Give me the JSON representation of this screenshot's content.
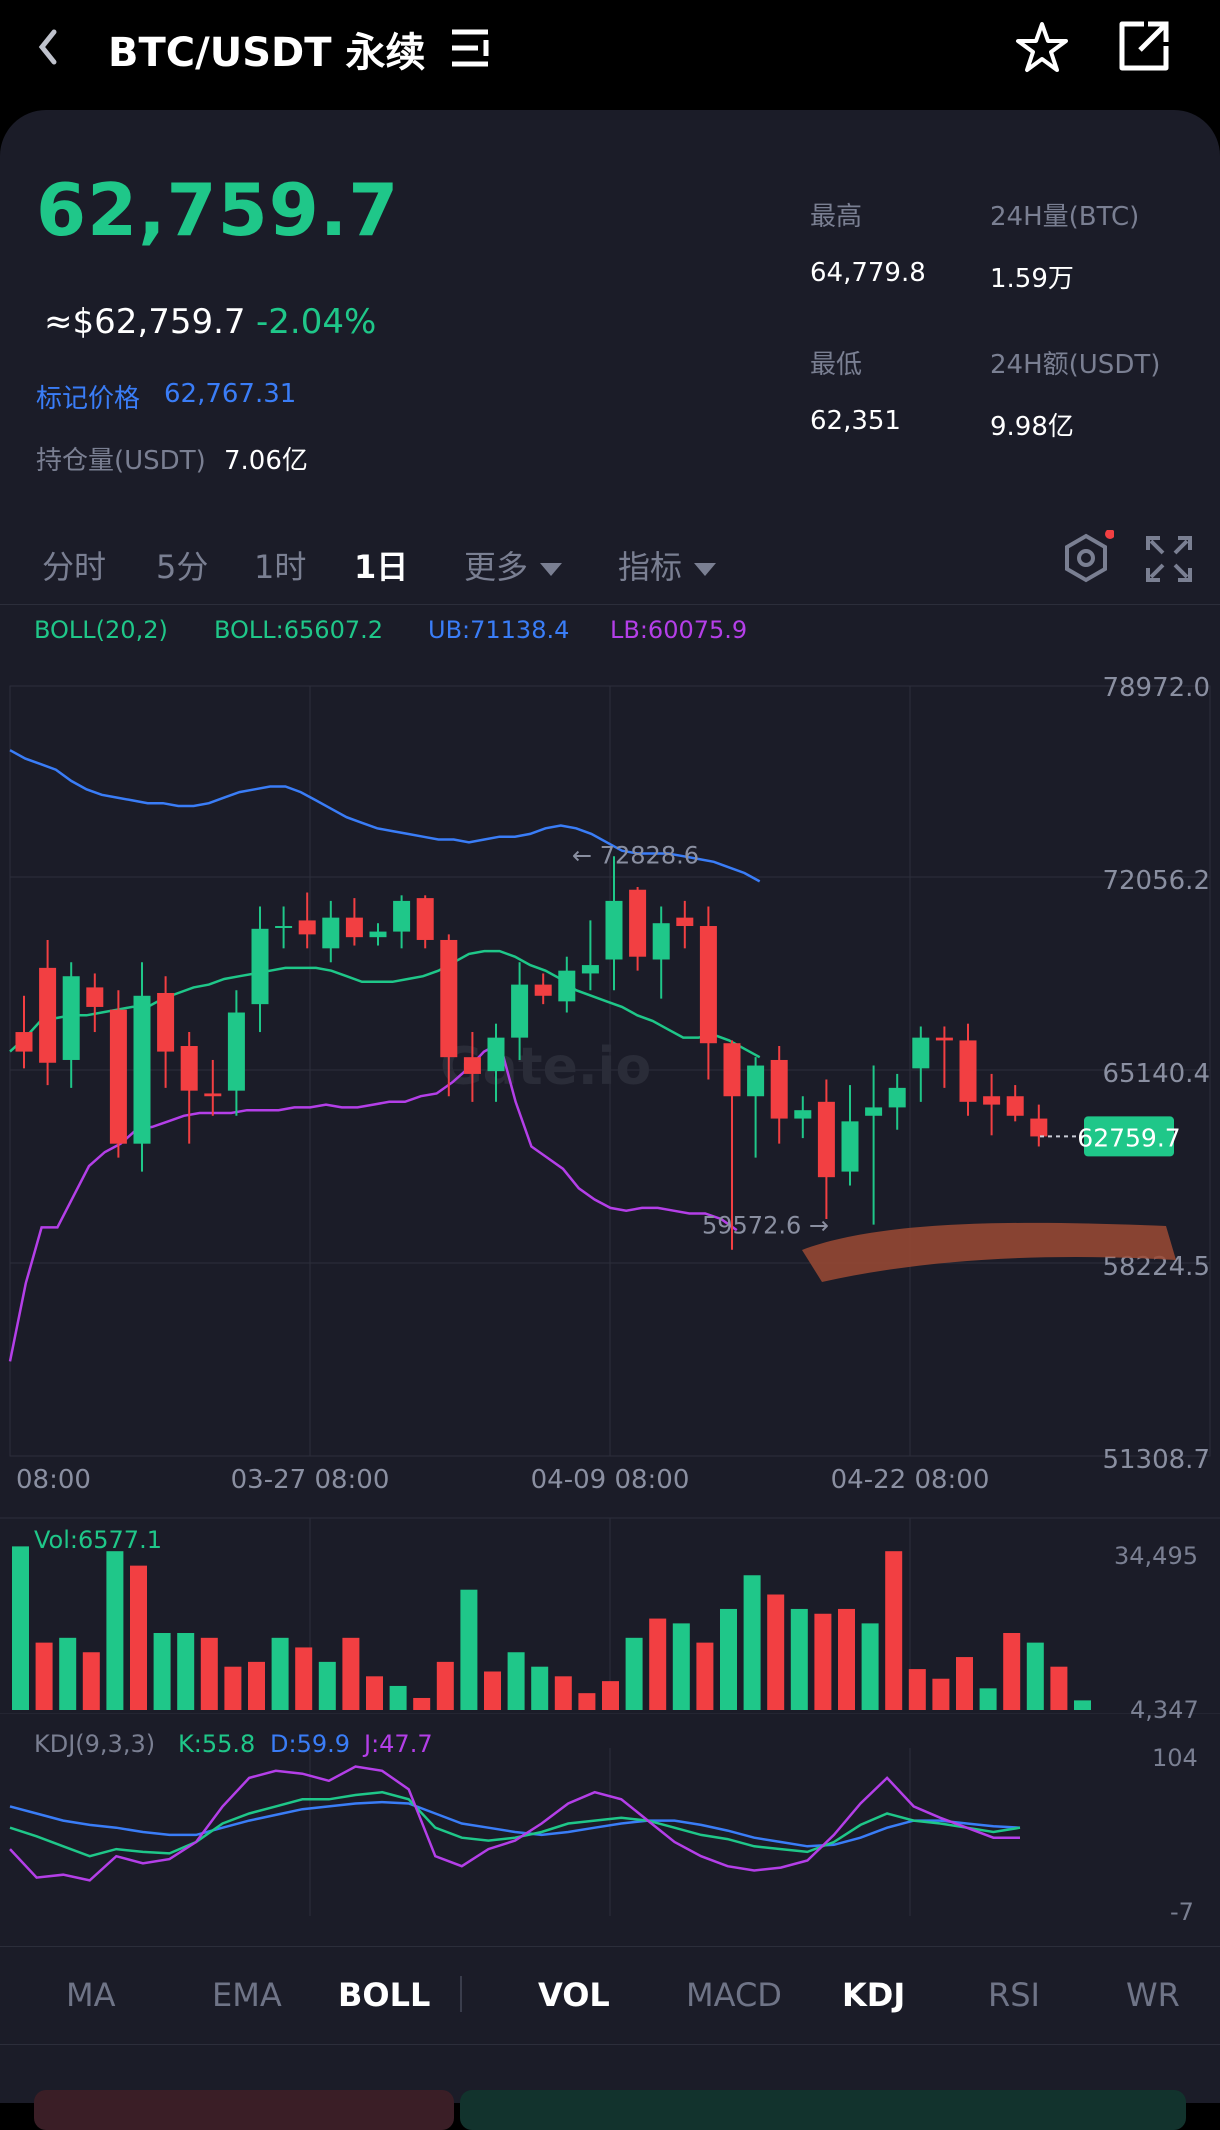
{
  "header": {
    "title": "BTC/USDT 永续",
    "back_icon": "chevron-left-icon",
    "menu_icon": "menu-lines-icon",
    "star_icon": "star-outline-icon",
    "share_icon": "external-link-icon"
  },
  "ticker": {
    "last_price": "62,759.7",
    "usd_price": "≈$62,759.7",
    "change_pct": "-2.04%",
    "mark_label": "标记价格",
    "mark_value": "62,767.31",
    "oi_label": "持仓量(USDT)",
    "oi_value": "7.06亿",
    "high_label": "最高",
    "high_value": "64,779.8",
    "vol_label": "24H量(BTC)",
    "vol_value": "1.59万",
    "low_label": "最低",
    "low_value": "62,351",
    "amount_label": "24H额(USDT)",
    "amount_value": "9.98亿"
  },
  "interval_tabs": {
    "t1": "分时",
    "t2": "5分",
    "t3": "1时",
    "t4": "1日",
    "more": "更多",
    "indicator": "指标",
    "active": "1日"
  },
  "boll_legend": {
    "name": "BOLL(20,2)",
    "mid": "BOLL:65607.2",
    "ub": "UB:71138.4",
    "lb": "LB:60075.9"
  },
  "main_axis": {
    "y_labels": [
      "78972.0",
      "72056.2",
      "65140.4",
      "58224.5",
      "51308.7"
    ],
    "x_labels": [
      "08:00",
      "03-27 08:00",
      "04-09 08:00",
      "04-22 08:00"
    ],
    "current_price_tag": "62759.7",
    "max_annotation": "← 72828.6",
    "min_annotation": "59572.6 →",
    "watermark": "Gate.io"
  },
  "volume": {
    "label": "Vol:6577.1",
    "top": "34,495",
    "bottom": "4,347"
  },
  "kdj": {
    "name": "KDJ(9,3,3)",
    "k": "K:55.8",
    "d": "D:59.9",
    "j": "J:47.7",
    "top": "104",
    "bottom": "-7"
  },
  "bottom_tabs": [
    "MA",
    "EMA",
    "BOLL",
    "VOL",
    "MACD",
    "KDJ",
    "RSI",
    "WR"
  ],
  "colors": {
    "up": "#1fc789",
    "down": "#f23f42",
    "ub": "#3a7df7",
    "mid": "#1fc789",
    "lb": "#b43fe8",
    "bg": "#1b1c28"
  },
  "chart_data": {
    "type": "candlestick",
    "y_range": [
      51308.7,
      78972.0
    ],
    "candles": [
      {
        "o": 66500,
        "h": 67800,
        "l": 65200,
        "c": 65800
      },
      {
        "o": 68800,
        "h": 69800,
        "l": 64600,
        "c": 65400
      },
      {
        "o": 65500,
        "h": 69000,
        "l": 64500,
        "c": 68500
      },
      {
        "o": 68100,
        "h": 68600,
        "l": 66500,
        "c": 67400
      },
      {
        "o": 67300,
        "h": 68000,
        "l": 62000,
        "c": 62500
      },
      {
        "o": 62500,
        "h": 69000,
        "l": 61500,
        "c": 67800
      },
      {
        "o": 67900,
        "h": 68500,
        "l": 64500,
        "c": 65800
      },
      {
        "o": 66000,
        "h": 66500,
        "l": 62500,
        "c": 64400
      },
      {
        "o": 64300,
        "h": 65500,
        "l": 63500,
        "c": 64200
      },
      {
        "o": 64400,
        "h": 68000,
        "l": 63500,
        "c": 67200
      },
      {
        "o": 67500,
        "h": 71000,
        "l": 66500,
        "c": 70200
      },
      {
        "o": 70300,
        "h": 71000,
        "l": 69500,
        "c": 70300
      },
      {
        "o": 70500,
        "h": 71500,
        "l": 69500,
        "c": 70000
      },
      {
        "o": 69500,
        "h": 71200,
        "l": 69000,
        "c": 70600
      },
      {
        "o": 70600,
        "h": 71300,
        "l": 69600,
        "c": 69900
      },
      {
        "o": 69900,
        "h": 70400,
        "l": 69600,
        "c": 70100
      },
      {
        "o": 70100,
        "h": 71400,
        "l": 69500,
        "c": 71200
      },
      {
        "o": 71300,
        "h": 71400,
        "l": 69500,
        "c": 69800
      },
      {
        "o": 69800,
        "h": 70000,
        "l": 64200,
        "c": 65600
      },
      {
        "o": 65600,
        "h": 66500,
        "l": 64000,
        "c": 65000
      },
      {
        "o": 65100,
        "h": 66800,
        "l": 64000,
        "c": 66300
      },
      {
        "o": 66300,
        "h": 69000,
        "l": 65500,
        "c": 68200
      },
      {
        "o": 68200,
        "h": 68600,
        "l": 67500,
        "c": 67800
      },
      {
        "o": 67600,
        "h": 69200,
        "l": 67200,
        "c": 68700
      },
      {
        "o": 68600,
        "h": 70500,
        "l": 68000,
        "c": 68900
      },
      {
        "o": 69100,
        "h": 72800,
        "l": 68000,
        "c": 71200
      },
      {
        "o": 71600,
        "h": 71700,
        "l": 68700,
        "c": 69200
      },
      {
        "o": 69100,
        "h": 71000,
        "l": 67700,
        "c": 70400
      },
      {
        "o": 70600,
        "h": 71200,
        "l": 69500,
        "c": 70300
      },
      {
        "o": 70300,
        "h": 71000,
        "l": 64800,
        "c": 66100
      },
      {
        "o": 66100,
        "h": 66200,
        "l": 58700,
        "c": 64200
      },
      {
        "o": 64200,
        "h": 65600,
        "l": 62000,
        "c": 65300
      },
      {
        "o": 65500,
        "h": 66000,
        "l": 62500,
        "c": 63400
      },
      {
        "o": 63400,
        "h": 64200,
        "l": 62700,
        "c": 63700
      },
      {
        "o": 64000,
        "h": 64800,
        "l": 59800,
        "c": 61300
      },
      {
        "o": 61500,
        "h": 64600,
        "l": 61000,
        "c": 63300
      },
      {
        "o": 63500,
        "h": 65300,
        "l": 59600,
        "c": 63800
      },
      {
        "o": 63800,
        "h": 65000,
        "l": 63000,
        "c": 64500
      },
      {
        "o": 65200,
        "h": 66700,
        "l": 64000,
        "c": 66300
      },
      {
        "o": 66300,
        "h": 66700,
        "l": 64500,
        "c": 66200
      },
      {
        "o": 66200,
        "h": 66800,
        "l": 63500,
        "c": 64000
      },
      {
        "o": 64200,
        "h": 65000,
        "l": 62800,
        "c": 63900
      },
      {
        "o": 64200,
        "h": 64600,
        "l": 63300,
        "c": 63500
      },
      {
        "o": 63400,
        "h": 63900,
        "l": 62400,
        "c": 62760
      }
    ],
    "ub": [
      76600,
      76300,
      76100,
      75900,
      75500,
      75200,
      75000,
      74900,
      74800,
      74700,
      74700,
      74600,
      74600,
      74700,
      74900,
      75100,
      75200,
      75300,
      75300,
      75100,
      74800,
      74500,
      74200,
      74000,
      73800,
      73700,
      73600,
      73500,
      73400,
      73400,
      73300,
      73400,
      73500,
      73500,
      73600,
      73800,
      73900,
      73800,
      73600,
      73300,
      73000,
      72900,
      72900,
      72900,
      72800,
      72700,
      72600,
      72400,
      72200,
      71900
    ],
    "mid": [
      65800,
      66300,
      66900,
      67000,
      67100,
      67100,
      67200,
      67300,
      67400,
      67400,
      67700,
      67900,
      68100,
      68200,
      68400,
      68500,
      68600,
      68700,
      68800,
      68800,
      68800,
      68700,
      68500,
      68300,
      68300,
      68300,
      68400,
      68500,
      68700,
      69000,
      69300,
      69400,
      69400,
      69200,
      68900,
      68700,
      68400,
      68000,
      67800,
      67600,
      67400,
      67100,
      66900,
      66600,
      66300,
      66300,
      66400,
      66200,
      65900,
      65600
    ],
    "lb": [
      54700,
      57500,
      59500,
      59500,
      60600,
      61700,
      62200,
      62500,
      63000,
      63100,
      63300,
      63500,
      63600,
      63600,
      63600,
      63700,
      63700,
      63700,
      63800,
      63800,
      63900,
      63800,
      63800,
      63900,
      64000,
      64000,
      64200,
      64300,
      64700,
      65200,
      65800,
      66100,
      64000,
      62400,
      62000,
      61600,
      60900,
      60500,
      60200,
      60100,
      60200,
      60200,
      60100,
      60000,
      60000,
      59800,
      59400
    ],
    "volume": {
      "range": [
        4347,
        34495
      ],
      "values": [
        34000,
        14000,
        15000,
        12000,
        33000,
        30000,
        16000,
        16000,
        15000,
        9000,
        10000,
        15000,
        13000,
        10000,
        15000,
        7000,
        5000,
        2500,
        10000,
        25000,
        8000,
        12000,
        9000,
        7000,
        3500,
        6000,
        15000,
        19000,
        18000,
        14000,
        21000,
        28000,
        24000,
        21000,
        20000,
        21000,
        18000,
        33000,
        8500,
        6500,
        11000,
        4500,
        16000,
        14000,
        9000,
        2000
      ],
      "up": [
        true,
        false,
        true,
        false,
        true,
        false,
        true,
        true,
        false,
        false,
        false,
        true,
        false,
        true,
        false,
        false,
        true,
        false,
        false,
        true,
        false,
        true,
        true,
        false,
        false,
        false,
        true,
        false,
        true,
        false,
        true,
        true,
        false,
        true,
        false,
        false,
        true,
        false,
        false,
        false,
        false,
        true,
        false,
        true,
        false,
        true
      ]
    },
    "kdj": {
      "range": [
        -7,
        104
      ],
      "k": [
        55,
        49,
        42,
        35,
        40,
        38,
        37,
        45,
        58,
        65,
        70,
        75,
        75,
        78,
        80,
        75,
        55,
        48,
        46,
        48,
        52,
        58,
        60,
        62,
        60,
        55,
        50,
        47,
        42,
        40,
        38,
        45,
        57,
        65,
        60,
        58,
        55,
        52,
        55
      ],
      "d": [
        70,
        65,
        60,
        57,
        55,
        52,
        50,
        50,
        55,
        60,
        64,
        68,
        70,
        72,
        73,
        72,
        65,
        58,
        55,
        52,
        50,
        52,
        55,
        58,
        60,
        60,
        57,
        53,
        48,
        45,
        42,
        43,
        48,
        55,
        60,
        60,
        58,
        56,
        55
      ],
      "j": [
        40,
        20,
        22,
        18,
        35,
        30,
        33,
        45,
        70,
        90,
        95,
        93,
        88,
        98,
        95,
        82,
        35,
        28,
        40,
        46,
        58,
        72,
        80,
        75,
        60,
        45,
        35,
        28,
        25,
        27,
        32,
        50,
        72,
        90,
        70,
        62,
        55,
        48,
        48
      ]
    }
  }
}
